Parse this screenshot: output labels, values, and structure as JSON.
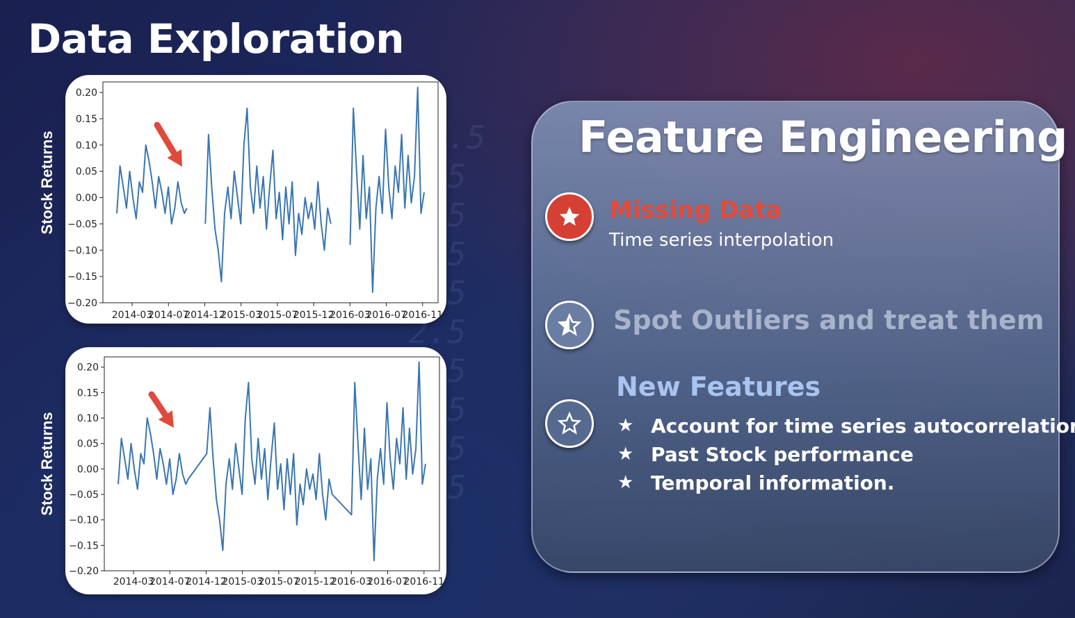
{
  "title": "Data Exploration",
  "panel": {
    "title": "Feature Engineering",
    "items": [
      {
        "title": "Missing Data",
        "subtitle": "Time series interpolation",
        "icon": "star-filled-icon",
        "color": "#d63f33"
      },
      {
        "title": "Spot Outliers and treat them",
        "icon": "star-half-icon"
      },
      {
        "title": "New Features",
        "icon": "star-outline-icon",
        "bullets": [
          "Account for time series autocorrelation",
          "Past Stock performance",
          "Temporal information."
        ]
      }
    ],
    "bullet_icon": "★"
  },
  "chart_data": [
    {
      "type": "line",
      "ylabel": "Stock Returns",
      "ylim": [
        -0.2,
        0.22
      ],
      "yticks": [
        "0.20",
        "0.15",
        "0.10",
        "0.05",
        "0.00",
        "−0.05",
        "−0.10",
        "−0.15",
        "−0.20"
      ],
      "xticks": [
        "2014-03",
        "2014-07",
        "2014-12",
        "2015-03",
        "2015-07",
        "2015-12",
        "2016-03",
        "2016-07",
        "2016-11"
      ],
      "annotation": "red-arrow pointing to missing-data gap",
      "line_color": "#3a76b0",
      "series": [
        {
          "segments": [
            [
              [
                0.0,
                -0.03
              ],
              [
                0.4,
                0.06
              ],
              [
                0.8,
                0.02
              ],
              [
                1.2,
                -0.02
              ],
              [
                1.6,
                0.05
              ],
              [
                2.0,
                0.0
              ],
              [
                2.4,
                -0.04
              ],
              [
                2.8,
                0.03
              ],
              [
                3.2,
                0.01
              ],
              [
                3.6,
                0.1
              ],
              [
                4.0,
                0.07
              ],
              [
                4.4,
                0.03
              ],
              [
                4.8,
                -0.02
              ],
              [
                5.2,
                0.04
              ],
              [
                5.6,
                0.01
              ],
              [
                6.0,
                -0.03
              ],
              [
                6.4,
                0.02
              ],
              [
                6.8,
                -0.05
              ],
              [
                7.2,
                -0.02
              ],
              [
                7.6,
                0.03
              ],
              [
                8.0,
                -0.01
              ],
              [
                8.4,
                -0.03
              ],
              [
                8.7,
                -0.02
              ]
            ],
            [
              [
                11.0,
                -0.05
              ],
              [
                11.4,
                0.12
              ],
              [
                11.8,
                0.02
              ],
              [
                12.2,
                -0.06
              ],
              [
                12.6,
                -0.1
              ],
              [
                13.0,
                -0.16
              ],
              [
                13.4,
                -0.03
              ],
              [
                13.8,
                0.02
              ],
              [
                14.2,
                -0.04
              ],
              [
                14.6,
                0.05
              ],
              [
                15.0,
                0.0
              ],
              [
                15.4,
                -0.05
              ],
              [
                15.8,
                0.1
              ],
              [
                16.2,
                0.17
              ],
              [
                16.6,
                0.02
              ],
              [
                17.0,
                -0.03
              ],
              [
                17.4,
                0.06
              ],
              [
                17.8,
                -0.02
              ],
              [
                18.2,
                0.04
              ],
              [
                18.6,
                -0.06
              ],
              [
                19.0,
                0.02
              ],
              [
                19.4,
                0.09
              ],
              [
                19.8,
                -0.04
              ],
              [
                20.2,
                0.01
              ],
              [
                20.6,
                -0.08
              ],
              [
                21.0,
                0.02
              ],
              [
                21.4,
                -0.05
              ],
              [
                21.8,
                0.03
              ],
              [
                22.2,
                -0.11
              ],
              [
                22.6,
                -0.03
              ],
              [
                23.0,
                -0.07
              ],
              [
                23.4,
                0.0
              ],
              [
                23.8,
                -0.04
              ],
              [
                24.2,
                -0.01
              ],
              [
                24.6,
                -0.06
              ],
              [
                25.0,
                0.03
              ],
              [
                25.4,
                -0.05
              ],
              [
                25.8,
                -0.1
              ],
              [
                26.2,
                -0.02
              ],
              [
                26.6,
                -0.05
              ]
            ],
            [
              [
                29.0,
                -0.09
              ],
              [
                29.4,
                0.17
              ],
              [
                29.8,
                0.05
              ],
              [
                30.2,
                -0.06
              ],
              [
                30.6,
                0.08
              ],
              [
                31.0,
                -0.04
              ],
              [
                31.4,
                0.02
              ],
              [
                31.8,
                -0.18
              ],
              [
                32.2,
                -0.02
              ],
              [
                32.6,
                0.04
              ],
              [
                33.0,
                -0.03
              ],
              [
                33.4,
                0.13
              ],
              [
                33.8,
                0.02
              ],
              [
                34.2,
                -0.04
              ],
              [
                34.6,
                0.06
              ],
              [
                35.0,
                0.01
              ],
              [
                35.4,
                0.12
              ],
              [
                35.8,
                -0.02
              ],
              [
                36.2,
                0.08
              ],
              [
                36.6,
                -0.01
              ],
              [
                37.0,
                0.04
              ],
              [
                37.4,
                0.21
              ],
              [
                37.8,
                -0.03
              ],
              [
                38.2,
                0.01
              ]
            ]
          ]
        }
      ]
    },
    {
      "type": "line",
      "ylabel": "Stock Returns",
      "ylim": [
        -0.2,
        0.22
      ],
      "yticks": [
        "0.20",
        "0.15",
        "0.10",
        "0.05",
        "0.00",
        "−0.05",
        "−0.10",
        "−0.15",
        "−0.20"
      ],
      "xticks": [
        "2014-03",
        "2014-07",
        "2014-12",
        "2015-03",
        "2015-07",
        "2015-12",
        "2016-03",
        "2016-07",
        "2016-11"
      ],
      "annotation": "red-arrow pointing to interpolated gap",
      "line_color": "#3a76b0",
      "series": [
        {
          "segments": [
            [
              [
                0.0,
                -0.03
              ],
              [
                0.4,
                0.06
              ],
              [
                0.8,
                0.02
              ],
              [
                1.2,
                -0.02
              ],
              [
                1.6,
                0.05
              ],
              [
                2.0,
                0.0
              ],
              [
                2.4,
                -0.04
              ],
              [
                2.8,
                0.03
              ],
              [
                3.2,
                0.01
              ],
              [
                3.6,
                0.1
              ],
              [
                4.0,
                0.07
              ],
              [
                4.4,
                0.03
              ],
              [
                4.8,
                -0.02
              ],
              [
                5.2,
                0.04
              ],
              [
                5.6,
                0.01
              ],
              [
                6.0,
                -0.03
              ],
              [
                6.4,
                0.02
              ],
              [
                6.8,
                -0.05
              ],
              [
                7.2,
                -0.02
              ],
              [
                7.6,
                0.03
              ],
              [
                8.0,
                -0.01
              ],
              [
                8.4,
                -0.03
              ],
              [
                8.7,
                -0.02
              ],
              [
                11.0,
                0.03
              ],
              [
                11.4,
                0.12
              ],
              [
                11.8,
                0.02
              ],
              [
                12.2,
                -0.06
              ],
              [
                12.6,
                -0.1
              ],
              [
                13.0,
                -0.16
              ],
              [
                13.4,
                -0.03
              ],
              [
                13.8,
                0.02
              ],
              [
                14.2,
                -0.04
              ],
              [
                14.6,
                0.05
              ],
              [
                15.0,
                0.0
              ],
              [
                15.4,
                -0.05
              ],
              [
                15.8,
                0.1
              ],
              [
                16.2,
                0.17
              ],
              [
                16.6,
                0.02
              ],
              [
                17.0,
                -0.03
              ],
              [
                17.4,
                0.06
              ],
              [
                17.8,
                -0.02
              ],
              [
                18.2,
                0.04
              ],
              [
                18.6,
                -0.06
              ],
              [
                19.0,
                0.02
              ],
              [
                19.4,
                0.09
              ],
              [
                19.8,
                -0.04
              ],
              [
                20.2,
                0.01
              ],
              [
                20.6,
                -0.08
              ],
              [
                21.0,
                0.02
              ],
              [
                21.4,
                -0.05
              ],
              [
                21.8,
                0.03
              ],
              [
                22.2,
                -0.11
              ],
              [
                22.6,
                -0.03
              ],
              [
                23.0,
                -0.07
              ],
              [
                23.4,
                0.0
              ],
              [
                23.8,
                -0.04
              ],
              [
                24.2,
                -0.01
              ],
              [
                24.6,
                -0.06
              ],
              [
                25.0,
                0.03
              ],
              [
                25.4,
                -0.05
              ],
              [
                25.8,
                -0.1
              ],
              [
                26.2,
                -0.02
              ],
              [
                26.6,
                -0.05
              ],
              [
                29.0,
                -0.09
              ],
              [
                29.4,
                0.17
              ],
              [
                29.8,
                0.05
              ],
              [
                30.2,
                -0.06
              ],
              [
                30.6,
                0.08
              ],
              [
                31.0,
                -0.04
              ],
              [
                31.4,
                0.02
              ],
              [
                31.8,
                -0.18
              ],
              [
                32.2,
                -0.02
              ],
              [
                32.6,
                0.04
              ],
              [
                33.0,
                -0.03
              ],
              [
                33.4,
                0.13
              ],
              [
                33.8,
                0.02
              ],
              [
                34.2,
                -0.04
              ],
              [
                34.6,
                0.06
              ],
              [
                35.0,
                0.01
              ],
              [
                35.4,
                0.12
              ],
              [
                35.8,
                -0.02
              ],
              [
                36.2,
                0.08
              ],
              [
                36.6,
                -0.01
              ],
              [
                37.0,
                0.04
              ],
              [
                37.4,
                0.21
              ],
              [
                37.8,
                -0.03
              ],
              [
                38.2,
                0.01
              ]
            ]
          ]
        }
      ]
    }
  ]
}
